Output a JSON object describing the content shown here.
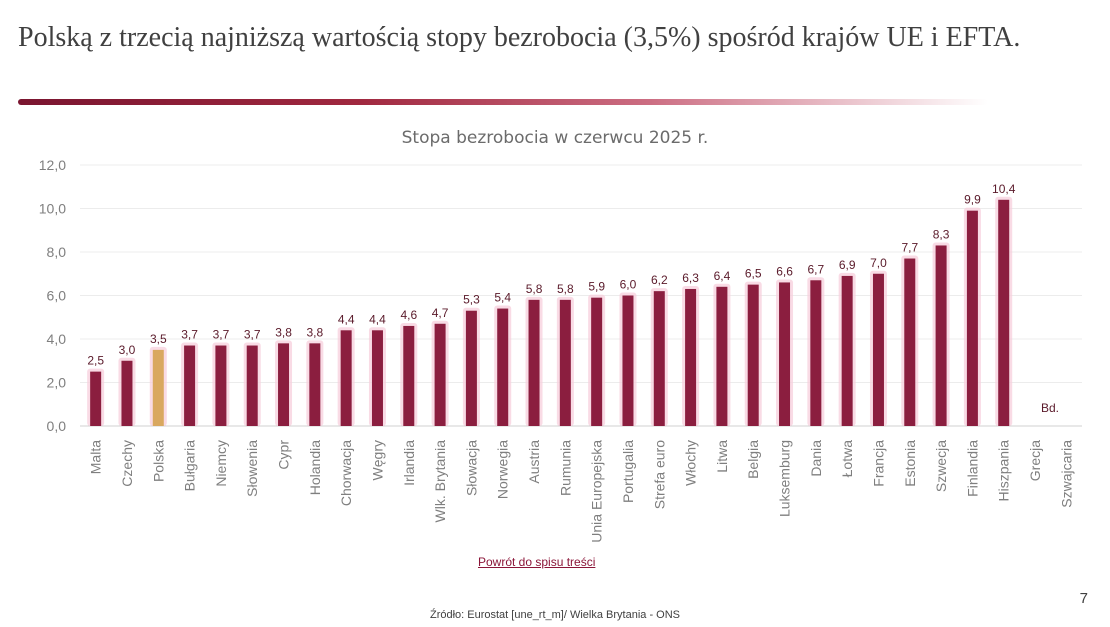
{
  "slide": {
    "title": "Polską z trzecią najniższą wartością stopy bezrobocia (3,5%) spośród krajów UE i EFTA.",
    "back_link": "Powrót do spisu treści",
    "source": "Źródło: Eurostat [une_rt_m]/ Wielka Brytania - ONS",
    "page_number": "7"
  },
  "colors": {
    "bar": "#8b1e3f",
    "highlight": "#d9a85f",
    "glow": "#f7cfdc"
  },
  "chart_data": {
    "type": "bar",
    "title": "Stopa bezrobocia w czerwcu 2025 r.",
    "xlabel": "",
    "ylabel": "",
    "ylim": [
      0,
      12
    ],
    "yticks": [
      "0,0",
      "2,0",
      "4,0",
      "6,0",
      "8,0",
      "10,0",
      "12,0"
    ],
    "grid": true,
    "categories": [
      "Malta",
      "Czechy",
      "Polska",
      "Bułgaria",
      "Niemcy",
      "Słowenia",
      "Cypr",
      "Holandia",
      "Chorwacja",
      "Węgry",
      "Irlandia",
      "Wlk. Brytania",
      "Słowacja",
      "Norwegia",
      "Austria",
      "Rumunia",
      "Unia Europejska",
      "Portugalia",
      "Strefa euro",
      "Włochy",
      "Litwa",
      "Belgia",
      "Luksemburg",
      "Dania",
      "Łotwa",
      "Francja",
      "Estonia",
      "Szwecja",
      "Finlandia",
      "Hiszpania",
      "Grecja",
      "Szwajcaria"
    ],
    "values": [
      2.5,
      3.0,
      3.5,
      3.7,
      3.7,
      3.7,
      3.8,
      3.8,
      4.4,
      4.4,
      4.6,
      4.7,
      5.3,
      5.4,
      5.8,
      5.8,
      5.9,
      6.0,
      6.2,
      6.3,
      6.4,
      6.5,
      6.6,
      6.7,
      6.9,
      7.0,
      7.7,
      8.3,
      9.9,
      10.4,
      null,
      null
    ],
    "data_labels": [
      "2,5",
      "3,0",
      "3,5",
      "3,7",
      "3,7",
      "3,7",
      "3,8",
      "3,8",
      "4,4",
      "4,4",
      "4,6",
      "4,7",
      "5,3",
      "5,4",
      "5,8",
      "5,8",
      "5,9",
      "6,0",
      "6,2",
      "6,3",
      "6,4",
      "6,5",
      "6,6",
      "6,7",
      "6,9",
      "7,0",
      "7,7",
      "8,3",
      "9,9",
      "10,4",
      "",
      ""
    ],
    "highlight_category": "Polska",
    "annotation": "Bd."
  }
}
